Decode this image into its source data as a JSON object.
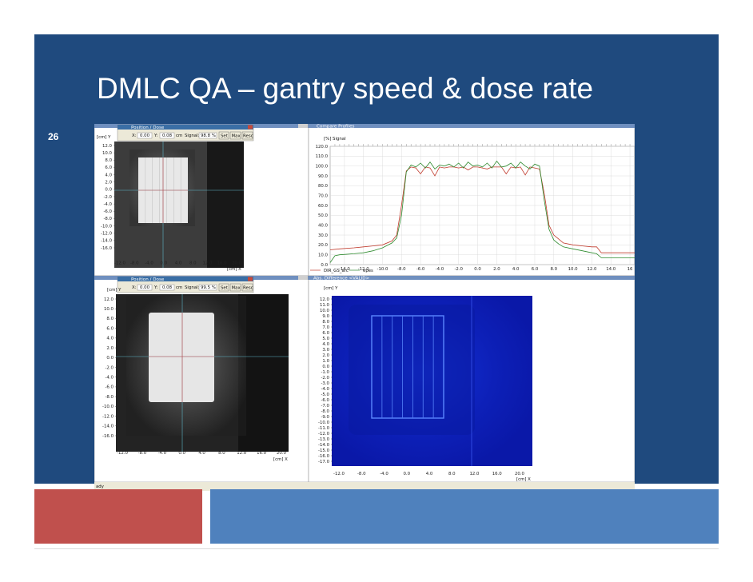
{
  "slide": {
    "title": "DMLC QA – gantry speed & dose rate",
    "number": "26",
    "colors": {
      "background": "#1f4a7e",
      "footer_red": "#c0504d",
      "footer_blue": "#4f81bd"
    }
  },
  "windows": {
    "top_left": {
      "toolbar": {
        "title": "Position / Dose",
        "x_label": "X:",
        "x_value": "0.00",
        "y_label": "Y:",
        "y_value": "0.08",
        "unit": "cm",
        "signal_label": "Signal:",
        "signal_value": "98.8 %",
        "set_label": "Set",
        "max_label": "Max",
        "rescale_label": "Resc"
      },
      "unit_y": "[cm] Y",
      "unit_x": "[cm] X",
      "y_ticks": [
        "12.0",
        "10.0",
        "8.0",
        "6.0",
        "4.0",
        "2.0",
        "0.0",
        "-2.0",
        "-4.0",
        "-6.0",
        "-8.0",
        "-10.0",
        "-12.0",
        "-14.0",
        "-16.0"
      ],
      "x_ticks": [
        "-12.0",
        "-8.0",
        "-4.0",
        "0.0",
        "4.0",
        "8.0",
        "12.0",
        "16.0",
        "20.0"
      ]
    },
    "bottom_left": {
      "toolbar": {
        "title": "Position / Dose",
        "x_label": "X:",
        "x_value": "0.00",
        "y_label": "Y:",
        "y_value": "0.08",
        "unit": "cm",
        "signal_label": "Signal:",
        "signal_value": "99.5 %",
        "set_label": "Set",
        "max_label": "Max",
        "rescale_label": "Resc"
      },
      "unit_y": "[cm] Y",
      "unit_x": "[cm] X",
      "y_ticks": [
        "12.0",
        "10.0",
        "8.0",
        "6.0",
        "4.0",
        "2.0",
        "0.0",
        "-2.0",
        "-4.0",
        "-6.0",
        "-8.0",
        "-10.0",
        "-12.0",
        "-14.0",
        "-16.0"
      ],
      "x_ticks": [
        "-12.0",
        "-8.0",
        "-4.0",
        "0.0",
        "4.0",
        "8.0",
        "12.0",
        "16.0",
        "20.0"
      ]
    },
    "bottom_right": {
      "title": "Abs. Difference <VALID>",
      "unit_y": "[cm] Y",
      "unit_x": "[cm] X",
      "y_ticks": [
        "12.0",
        "11.0",
        "10.0",
        "9.0",
        "8.0",
        "7.0",
        "6.0",
        "5.0",
        "4.0",
        "3.0",
        "2.0",
        "1.0",
        "0.0",
        "-1.0",
        "-2.0",
        "-3.0",
        "-4.0",
        "-5.0",
        "-6.0",
        "-7.0",
        "-8.0",
        "-9.0",
        "-10.0",
        "-11.0",
        "-12.0",
        "-13.0",
        "-14.0",
        "-15.0",
        "-16.0",
        "-17.0"
      ],
      "x_ticks": [
        "-12.0",
        "-8.0",
        "-4.0",
        "0.0",
        "4.0",
        "8.0",
        "12.0",
        "16.0",
        "20.0"
      ]
    },
    "status_text": "ady"
  },
  "chart_data": {
    "type": "line",
    "title": "Compare Profiles",
    "xlabel": "",
    "ylabel": "[%] Signal",
    "xlim": [
      -15.5,
      16.5
    ],
    "ylim": [
      0,
      120
    ],
    "x_ticks": [
      "-14.0",
      "-12.0",
      "-10.0",
      "-8.0",
      "-6.0",
      "-4.0",
      "-2.0",
      "0.0",
      "2.0",
      "4.0",
      "6.0",
      "8.0",
      "10.0",
      "12.0",
      "14.0",
      "16"
    ],
    "y_ticks": [
      "120.0",
      "110.0",
      "100.0",
      "90.0",
      "80.0",
      "70.0",
      "60.0",
      "50.0",
      "40.0",
      "30.0",
      "20.0",
      "10.0",
      "0.0"
    ],
    "grid": true,
    "legend": "bottom-left",
    "series": [
      {
        "name": "DIR_GS_arc",
        "color": "#c0392b",
        "x": [
          -15.5,
          -14.5,
          -13.0,
          -12.0,
          -11.0,
          -10.0,
          -9.0,
          -8.5,
          -8.0,
          -7.5,
          -7.0,
          -6.5,
          -6.0,
          -5.5,
          -5.0,
          -4.5,
          -4.0,
          -3.5,
          -3.0,
          -2.5,
          -2.0,
          -1.5,
          -1.0,
          -0.5,
          0.0,
          0.5,
          1.0,
          1.5,
          2.0,
          2.5,
          3.0,
          3.5,
          4.0,
          4.5,
          5.0,
          5.5,
          6.0,
          6.5,
          7.0,
          7.5,
          8.0,
          8.5,
          9.0,
          10.0,
          11.0,
          12.0,
          12.5,
          13.0,
          14.0,
          15.0,
          16.5
        ],
        "y": [
          15,
          16,
          17,
          18,
          19,
          20,
          24,
          30,
          60,
          95,
          99,
          98,
          92,
          99,
          98,
          90,
          99,
          98,
          99,
          99,
          98,
          99,
          96,
          99,
          99,
          98,
          97,
          99,
          99,
          99,
          92,
          99,
          98,
          99,
          91,
          99,
          98,
          97,
          72,
          40,
          30,
          26,
          22,
          20,
          19,
          18,
          18,
          12,
          12,
          12,
          12
        ]
      },
      {
        "name": "epes",
        "color": "#2e8b2e",
        "x": [
          -15.5,
          -15.0,
          -14.5,
          -13.0,
          -12.0,
          -11.0,
          -10.0,
          -9.0,
          -8.5,
          -8.0,
          -7.5,
          -7.0,
          -6.5,
          -6.0,
          -5.5,
          -5.0,
          -4.5,
          -4.0,
          -3.5,
          -3.0,
          -2.5,
          -2.0,
          -1.5,
          -1.0,
          -0.5,
          0.0,
          0.5,
          1.0,
          1.5,
          2.0,
          2.5,
          3.0,
          3.5,
          4.0,
          4.5,
          5.0,
          5.5,
          6.0,
          6.5,
          7.0,
          7.5,
          8.0,
          8.5,
          9.0,
          10.0,
          11.0,
          12.0,
          12.5,
          13.0,
          14.0,
          15.0,
          16.5
        ],
        "y": [
          2,
          9,
          10,
          11,
          12,
          14,
          17,
          22,
          27,
          50,
          94,
          101,
          99,
          103,
          98,
          104,
          97,
          101,
          100,
          102,
          99,
          103,
          98,
          104,
          100,
          101,
          99,
          103,
          98,
          105,
          99,
          100,
          103,
          98,
          104,
          100,
          97,
          102,
          100,
          65,
          36,
          25,
          21,
          18,
          16,
          14,
          12,
          11,
          7,
          7,
          7,
          7
        ]
      }
    ]
  }
}
